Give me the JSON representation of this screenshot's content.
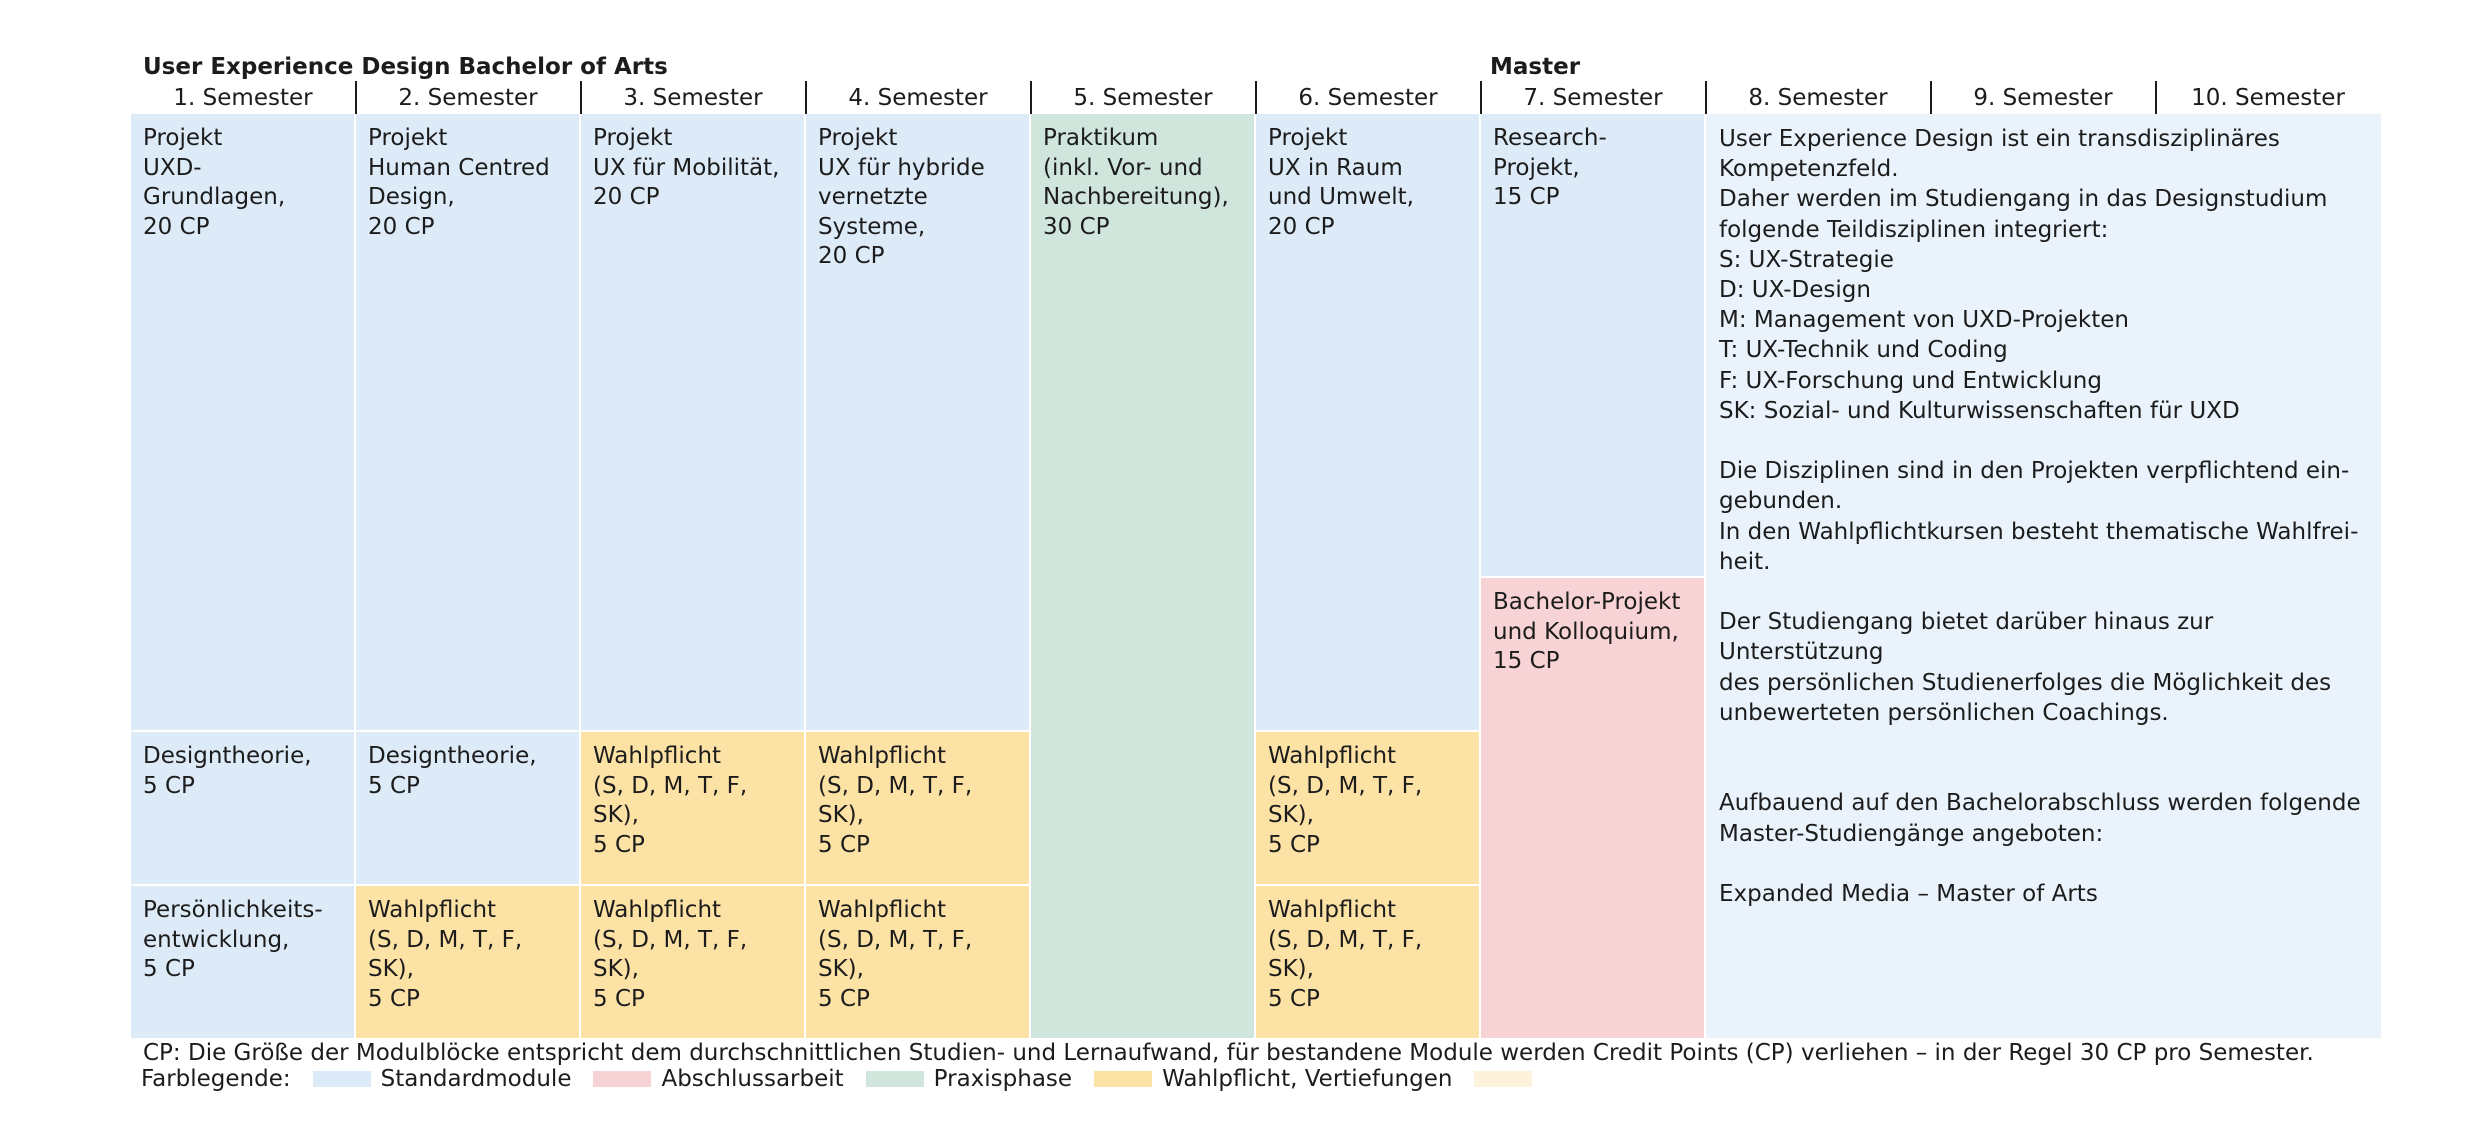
{
  "headings": {
    "bachelor": "User Experience Design Bachelor of Arts",
    "master": "Master"
  },
  "semesters": [
    "1. Semester",
    "2. Semester",
    "3. Semester",
    "4. Semester",
    "5. Semester",
    "6. Semester",
    "7. Semester",
    "8. Semester",
    "9. Semester",
    "10. Semester"
  ],
  "modules": {
    "s1_projekt": "Projekt\nUXD-Grundlagen,\n20 CP",
    "s1_designtheorie": "Designtheorie,\n5 CP",
    "s1_persoenlich": "Persönlichkeits-\nentwicklung,\n5 CP",
    "s2_projekt": "Projekt\nHuman Centred\nDesign,\n20 CP",
    "s2_designtheorie": "Designtheorie,\n5 CP",
    "s2_wahlpflicht": "Wahlpflicht\n(S, D, M, T, F, SK),\n5 CP",
    "s3_projekt": "Projekt\nUX für Mobilität,\n20 CP",
    "s3_wahlpflicht_a": "Wahlpflicht\n(S, D, M, T, F, SK),\n5 CP",
    "s3_wahlpflicht_b": "Wahlpflicht\n(S, D, M, T, F, SK),\n5 CP",
    "s4_projekt": "Projekt\nUX für hybride\nvernetzte\nSysteme,\n20 CP",
    "s4_wahlpflicht_a": "Wahlpflicht\n(S, D, M, T, F, SK),\n5 CP",
    "s4_wahlpflicht_b": "Wahlpflicht\n(S, D, M, T, F, SK),\n5 CP",
    "s5_praktikum": "Praktikum\n(inkl. Vor- und\nNachbereitung),\n30 CP",
    "s6_projekt": "Projekt\nUX in Raum\nund Umwelt,\n20 CP",
    "s6_wahlpflicht_a": "Wahlpflicht\n(S, D, M, T, F, SK),\n5 CP",
    "s6_wahlpflicht_b": "Wahlpflicht\n(S, D, M, T, F, SK),\n5 CP",
    "s7_research": "Research-Projekt,\n15 CP",
    "s7_bachelor": "Bachelor-Projekt\nund Kolloquium,\n15 CP"
  },
  "info_text": "User Experience Design ist ein transdisziplinäres\nKompetenzfeld.\nDaher werden im Studiengang in das Designstudium\nfolgende Teildisziplinen integriert:\nS: UX-Strategie\nD: UX-Design\nM: Management von UXD-Projekten\nT: UX-Technik und Coding\nF: UX-Forschung und Entwicklung\nSK: Sozial- und Kulturwissenschaften für UXD\n\nDie Disziplinen sind in den Projekten verpflichtend ein-\ngebunden.\nIn den Wahlpflichtkursen besteht thematische Wahlfrei-\nheit.\n\nDer Studiengang bietet darüber hinaus zur Unterstützung\ndes persönlichen Studienerfolges die Möglichkeit des\nunbewerteten persönlichen Coachings.\n\n\nAufbauend auf den Bachelorabschluss werden folgende\nMaster-Studiengänge angeboten:\n\nExpanded Media – Master of Arts",
  "footnote": "CP: Die Größe der Modulblöcke entspricht dem durchschnittlichen Studien- und Lernaufwand, für bestandene Module werden Credit Points (CP) verliehen – in der Regel 30 CP pro Semester.",
  "legend": {
    "title": "Farblegende:",
    "items": [
      {
        "label": "Standardmodule",
        "color": "#ddebf8"
      },
      {
        "label": "Abschlussarbeit",
        "color": "#f8d3d6"
      },
      {
        "label": "Praxisphase",
        "color": "#d0e6dd"
      },
      {
        "label": "Wahlpflicht, Vertiefungen",
        "color": "#fde2a6"
      },
      {
        "label": "",
        "color": "#fdf3dc"
      }
    ]
  }
}
